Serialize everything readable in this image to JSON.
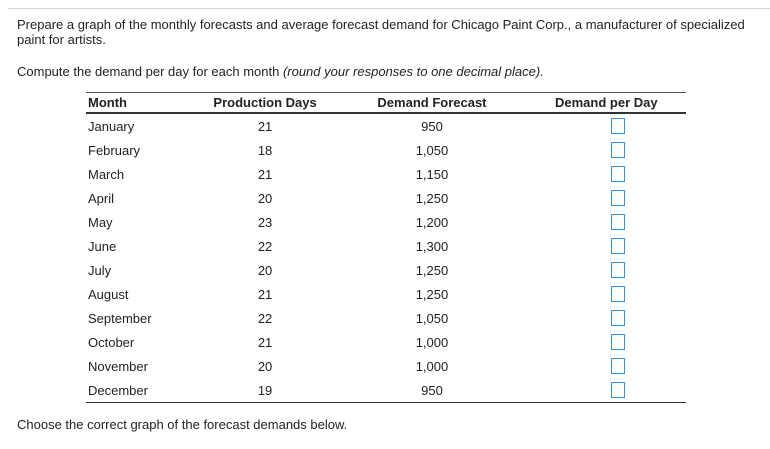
{
  "prompt_text": "Prepare a graph of the monthly forecasts and average forecast demand for Chicago Paint Corp., a manufacturer of specialized paint for artists.",
  "instruction": {
    "lead": "Compute the demand per day for each month ",
    "emphasis": "(round your responses to one decimal place)."
  },
  "table": {
    "headers": {
      "month": "Month",
      "production_days": "Production Days",
      "demand_forecast": "Demand Forecast",
      "demand_per_day": "Demand per Day"
    },
    "rows": [
      {
        "month": "January",
        "production_days": "21",
        "demand_forecast": "950",
        "demand_per_day": ""
      },
      {
        "month": "February",
        "production_days": "18",
        "demand_forecast": "1,050",
        "demand_per_day": ""
      },
      {
        "month": "March",
        "production_days": "21",
        "demand_forecast": "1,150",
        "demand_per_day": ""
      },
      {
        "month": "April",
        "production_days": "20",
        "demand_forecast": "1,250",
        "demand_per_day": ""
      },
      {
        "month": "May",
        "production_days": "23",
        "demand_forecast": "1,200",
        "demand_per_day": ""
      },
      {
        "month": "June",
        "production_days": "22",
        "demand_forecast": "1,300",
        "demand_per_day": ""
      },
      {
        "month": "July",
        "production_days": "20",
        "demand_forecast": "1,250",
        "demand_per_day": ""
      },
      {
        "month": "August",
        "production_days": "21",
        "demand_forecast": "1,250",
        "demand_per_day": ""
      },
      {
        "month": "September",
        "production_days": "22",
        "demand_forecast": "1,050",
        "demand_per_day": ""
      },
      {
        "month": "October",
        "production_days": "21",
        "demand_forecast": "1,000",
        "demand_per_day": ""
      },
      {
        "month": "November",
        "production_days": "20",
        "demand_forecast": "1,000",
        "demand_per_day": ""
      },
      {
        "month": "December",
        "production_days": "19",
        "demand_forecast": "950",
        "demand_per_day": ""
      }
    ]
  },
  "footer_text": "Choose the correct graph of the forecast demands below.",
  "colors": {
    "input_border": "#3a8fd6",
    "rule": "#333333"
  }
}
